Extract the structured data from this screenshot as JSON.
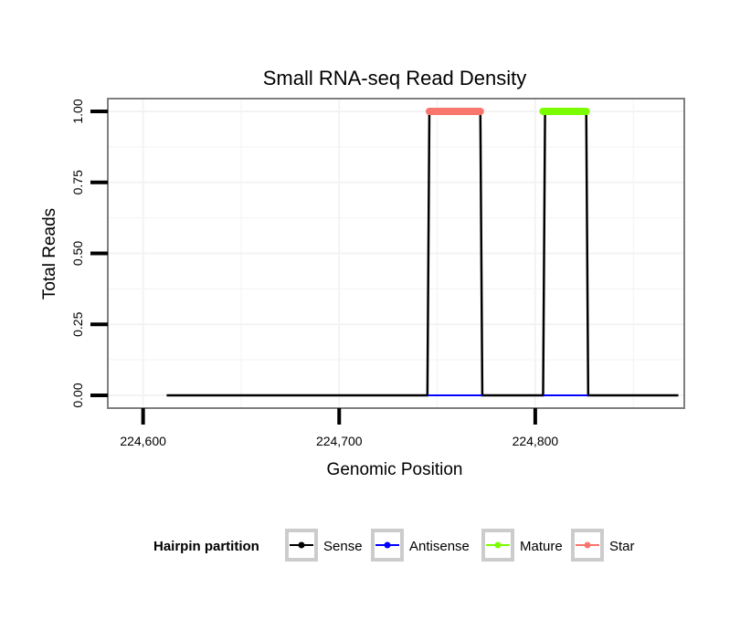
{
  "chart_data": {
    "type": "line",
    "title": "Small RNA-seq Read Density",
    "xlabel": "Genomic Position",
    "ylabel": "Total Reads",
    "xlim": [
      224582,
      224876
    ],
    "ylim": [
      -0.045,
      1.045
    ],
    "x_ticks": [
      224600,
      224700,
      224800
    ],
    "x_tick_labels": [
      "224,600",
      "224,700",
      "224,800"
    ],
    "y_ticks": [
      0,
      0.25,
      0.5,
      0.75,
      1.0
    ],
    "y_tick_labels": [
      "0.00",
      "0.25",
      "0.50",
      "0.75",
      "1.00"
    ],
    "grid": true,
    "series": [
      {
        "name": "Sense",
        "color": "#000000",
        "x": [
          224612,
          224745,
          224746,
          224772,
          224773,
          224804,
          224805,
          224826,
          224827,
          224873
        ],
        "y": [
          0,
          0,
          1,
          1,
          0,
          0,
          1,
          1,
          0,
          0
        ]
      },
      {
        "name": "Antisense",
        "color": "#0000ff",
        "x": [
          224745,
          224773,
          224804,
          224827
        ],
        "y": [
          0,
          0,
          0,
          0
        ]
      },
      {
        "name": "Mature",
        "color": "#7cfc00",
        "x": [
          224804,
          224826
        ],
        "y": [
          1,
          1
        ]
      },
      {
        "name": "Star",
        "color": "#f8766d",
        "x": [
          224746,
          224772
        ],
        "y": [
          1,
          1
        ]
      }
    ],
    "legend": {
      "title": "Hairpin partition",
      "position": "bottom",
      "entries": [
        "Sense",
        "Antisense",
        "Mature",
        "Star"
      ]
    }
  }
}
